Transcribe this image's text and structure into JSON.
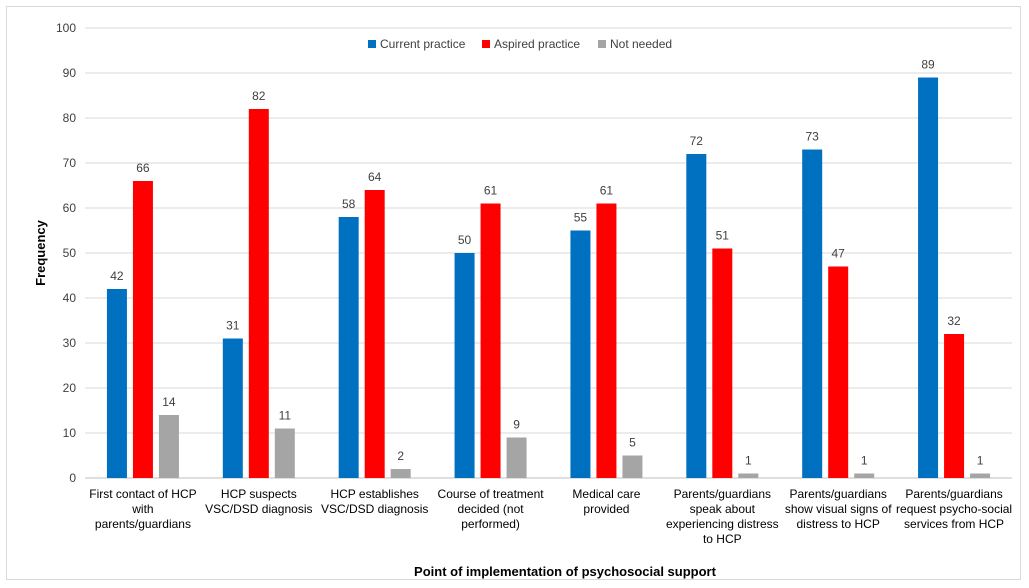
{
  "chart_data": {
    "type": "bar",
    "title": "",
    "xlabel": "Point of implementation of psychosocial support",
    "ylabel": "Frequency",
    "ylim": [
      0,
      100
    ],
    "yticks": [
      0,
      10,
      20,
      30,
      40,
      50,
      60,
      70,
      80,
      90,
      100
    ],
    "grid": true,
    "legend_position": "top",
    "categories": [
      [
        "First contact of HCP",
        "with",
        "parents/guardians"
      ],
      [
        "HCP suspects",
        "VSC/DSD diagnosis"
      ],
      [
        "HCP establishes",
        "VSC/DSD diagnosis"
      ],
      [
        "Course of treatment",
        "decided (not",
        "performed)"
      ],
      [
        "Medical care",
        "provided"
      ],
      [
        "Parents/guardians",
        "speak about",
        "experiencing distress",
        "to HCP"
      ],
      [
        "Parents/guardians",
        "show visual signs of",
        "distress to HCP"
      ],
      [
        "Parents/guardians",
        "request psycho-social",
        "services from HCP"
      ]
    ],
    "series": [
      {
        "name": "Current practice",
        "color": "#0070C0",
        "values": [
          42,
          31,
          58,
          50,
          55,
          72,
          73,
          89
        ]
      },
      {
        "name": "Aspired practice",
        "color": "#FF0000",
        "values": [
          66,
          82,
          64,
          61,
          61,
          51,
          47,
          32
        ]
      },
      {
        "name": "Not needed",
        "color": "#A5A5A5",
        "values": [
          14,
          11,
          2,
          9,
          5,
          1,
          1,
          1
        ]
      }
    ]
  }
}
